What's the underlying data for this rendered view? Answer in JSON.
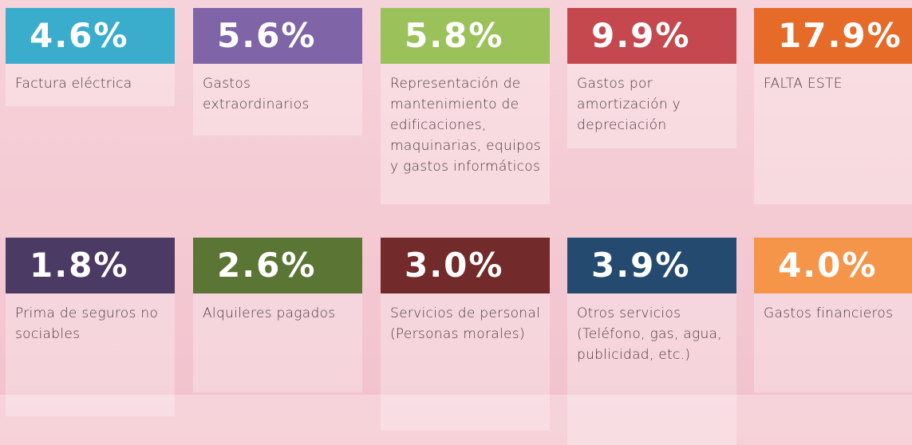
{
  "cards": [
    {
      "value": "4.6%",
      "label": "Factura eléctrica",
      "color": "#3aaccc"
    },
    {
      "value": "5.6%",
      "label": "Gastos extraordinarios",
      "color": "#7f65a8"
    },
    {
      "value": "5.8%",
      "label": "Representación de mantenimiento de edificaciones, maquinarias, equipos y gastos informáticos",
      "color": "#9bc15b"
    },
    {
      "value": "9.9%",
      "label": "Gastos por amortización y depreciación",
      "color": "#c4484d"
    },
    {
      "value": "17.9%",
      "label": "FALTA ESTE",
      "color": "#e66a28"
    },
    {
      "value": "1.8%",
      "label": "Prima de seguros no sociables",
      "color": "#4b3a63"
    },
    {
      "value": "2.6%",
      "label": "Alquileres pagados",
      "color": "#5b7535"
    },
    {
      "value": "3.0%",
      "label": "Servicios de personal (Personas morales)",
      "color": "#722a2a"
    },
    {
      "value": "3.9%",
      "label": "Otros servicios (Teléfono, gas, agua, publicidad, etc.)",
      "color": "#244a70"
    },
    {
      "value": "4.0%",
      "label": "Gastos financieros",
      "color": "#f4954a"
    }
  ]
}
